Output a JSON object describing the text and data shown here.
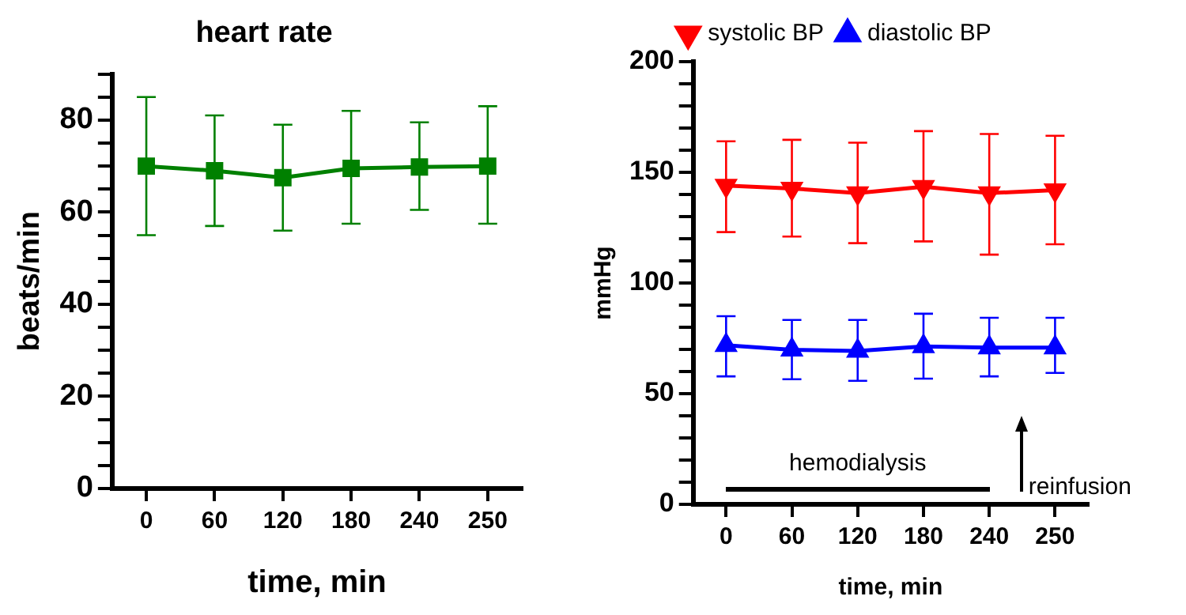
{
  "chart_data": [
    {
      "type": "line",
      "title": "heart rate",
      "xlabel": "time, min",
      "ylabel": "beats/min",
      "categories": [
        "0",
        "60",
        "120",
        "180",
        "240",
        "250"
      ],
      "series": [
        {
          "color": "#008000",
          "values": [
            70,
            69,
            67.5,
            69.5,
            69.8,
            70
          ],
          "errors": [
            [
              55,
              85
            ],
            [
              57,
              81
            ],
            [
              56,
              79
            ],
            [
              57.5,
              82
            ],
            [
              60.5,
              79.5
            ],
            [
              57.5,
              83
            ]
          ]
        }
      ],
      "marker": "square",
      "ylim": [
        0,
        90
      ],
      "yticks": [
        0,
        {
          "value": 5,
          "label": null
        },
        {
          "value": 10,
          "label": null
        },
        {
          "value": 15,
          "label": null
        },
        20,
        {
          "value": 25,
          "label": null
        },
        {
          "value": 30,
          "label": null
        },
        {
          "value": 35,
          "label": null
        },
        40,
        {
          "value": 45,
          "label": null
        },
        {
          "value": 50,
          "label": null
        },
        {
          "value": 55,
          "label": null
        },
        60,
        {
          "value": 65,
          "label": null
        },
        {
          "value": 70,
          "label": null
        },
        {
          "value": 75,
          "label": null
        },
        80,
        {
          "value": 85,
          "label": null
        },
        {
          "value": 90,
          "label": null
        }
      ],
      "grid": false,
      "legend": false
    },
    {
      "type": "line",
      "xlabel": "time, min",
      "ylabel": "mmHg",
      "categories": [
        "0",
        "60",
        "120",
        "180",
        "240",
        "250"
      ],
      "series": [
        {
          "name": "systolic BP",
          "color": "#ff0000",
          "marker": "triangle-down",
          "values": [
            144,
            142.7,
            140.6,
            143.5,
            140.6,
            142
          ],
          "errors": [
            [
              123,
              164
            ],
            [
              121,
              164.7
            ],
            [
              118,
              163.4
            ],
            [
              118.8,
              168.6
            ],
            [
              112.8,
              167.3
            ],
            [
              117.5,
              166.5
            ]
          ]
        },
        {
          "name": "diastolic BP",
          "color": "#0000ff",
          "marker": "triangle",
          "values": [
            71.9,
            69.8,
            69.3,
            71.3,
            70.8,
            70.8
          ],
          "errors": [
            [
              57.8,
              85
            ],
            [
              56.5,
              83.3
            ],
            [
              55.8,
              83.3
            ],
            [
              56.8,
              86.1
            ],
            [
              57.8,
              84.3
            ],
            [
              59.4,
              84.3
            ]
          ]
        }
      ],
      "ylim": [
        0,
        200
      ],
      "yticks": [
        0,
        {
          "value": 10,
          "label": null
        },
        {
          "value": 20,
          "label": null
        },
        {
          "value": 30,
          "label": null
        },
        {
          "value": 40,
          "label": null
        },
        50,
        {
          "value": 60,
          "label": null
        },
        {
          "value": 70,
          "label": null
        },
        {
          "value": 80,
          "label": null
        },
        {
          "value": 90,
          "label": null
        },
        100,
        {
          "value": 110,
          "label": null
        },
        {
          "value": 120,
          "label": null
        },
        {
          "value": 130,
          "label": null
        },
        {
          "value": 140,
          "label": null
        },
        150,
        {
          "value": 160,
          "label": null
        },
        {
          "value": 170,
          "label": null
        },
        {
          "value": 180,
          "label": null
        },
        {
          "value": 190,
          "label": null
        },
        200
      ],
      "grid": false,
      "legend": "top",
      "annotations": [
        "hemodialysis",
        "reinfusion"
      ]
    }
  ]
}
